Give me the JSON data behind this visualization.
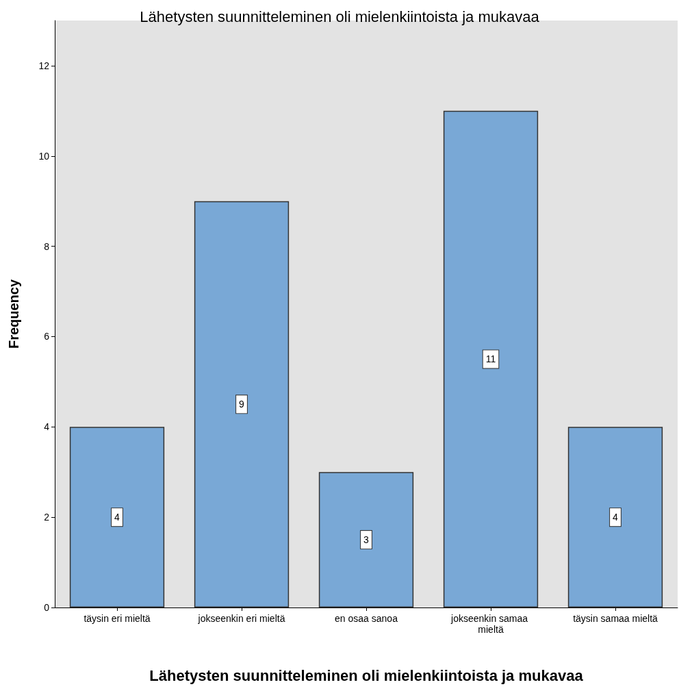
{
  "chart_data": {
    "type": "bar",
    "title": "Lähetysten suunnitteleminen oli mielenkiintoista ja mukavaa",
    "xlabel": "Lähetysten suunnitteleminen oli mielenkiintoista ja mukavaa",
    "ylabel": "Frequency",
    "categories": [
      "täysin eri mieltä",
      "jokseenkin eri mieltä",
      "en osaa sanoa",
      "jokseenkin samaa mieltä",
      "täysin samaa mieltä"
    ],
    "values": [
      4,
      9,
      3,
      11,
      4
    ],
    "color": "#79a8d6",
    "ylim": [
      0,
      13
    ],
    "yticks": [
      0,
      2,
      4,
      6,
      8,
      10,
      12
    ],
    "grid": false,
    "data_labels": true
  }
}
